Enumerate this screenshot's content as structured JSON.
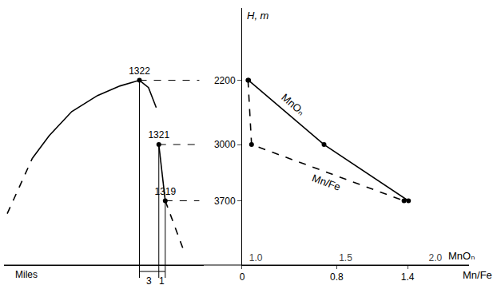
{
  "chart_data": {
    "type": "line",
    "ylabel": "H, m",
    "ylim": [
      4500,
      1300
    ],
    "yticks": [
      2200,
      3000,
      3700
    ],
    "grid": false,
    "xlabel": "MnOₙ",
    "xlim": [
      0.924,
      2.187
    ],
    "xticks": [
      {
        "value": 1,
        "label": "1.0"
      },
      {
        "value": 1.5,
        "label": "1.5"
      },
      {
        "value": 2,
        "label": "2.0"
      }
    ],
    "x2label": "Mn/Fe",
    "x2lim": [
      0,
      1.92
    ],
    "x2ticks": [
      0,
      0.8,
      1.4
    ],
    "series": [
      {
        "name": "MnOₙ",
        "axis": "x",
        "color": "#000000",
        "line_style": "solid",
        "marker": "circle",
        "x": [
          0.96,
          1.38,
          1.85
        ],
        "y": [
          2200,
          3000,
          3700
        ]
      },
      {
        "name": "Mn/Fe",
        "axis": "x2",
        "color": "#000000",
        "line_style": "dashed",
        "marker": "circle",
        "x": [
          0.05,
          0.08,
          1.37
        ],
        "y": [
          2200,
          3000,
          3700
        ]
      }
    ],
    "profile": {
      "xlabel": "Miles",
      "xlim": [
        -21,
        10
      ],
      "tick_labels": false,
      "color": "#000000",
      "segments": [
        {
          "line_style": "dashed",
          "x": [
            -20.5,
            -16.6
          ],
          "y": [
            3860,
            3170
          ]
        },
        {
          "line_style": "solid",
          "x": [
            -16.6,
            -14,
            -10.5,
            -6.5,
            -3,
            0,
            1.4,
            2.6
          ],
          "y": [
            3170,
            2890,
            2590,
            2390,
            2270,
            2200,
            2290,
            2540
          ]
        },
        {
          "line_style": "solid",
          "x": [
            3,
            3.6,
            4
          ],
          "y": [
            3000,
            3450,
            3700
          ]
        },
        {
          "line_style": "dashed",
          "x": [
            4,
            7
          ],
          "y": [
            3700,
            4350
          ]
        }
      ],
      "stations": [
        {
          "label": "1322",
          "x": 0,
          "y": 2200
        },
        {
          "label": "1321",
          "x": 3,
          "y": 3000
        },
        {
          "label": "1319",
          "x": 4,
          "y": 3700
        }
      ],
      "intervals": [
        {
          "from": 0,
          "to": 3,
          "label": "3"
        },
        {
          "from": 3,
          "to": 4,
          "label": "1"
        }
      ]
    }
  }
}
